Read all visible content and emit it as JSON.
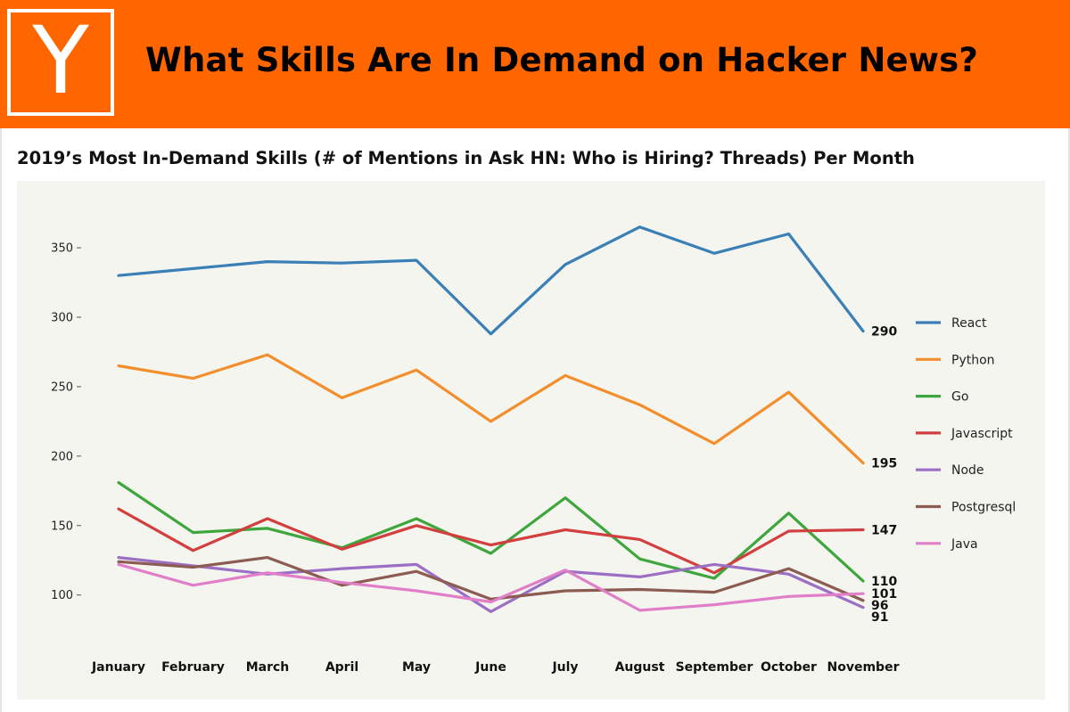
{
  "header": {
    "logo_letter": "Y",
    "title": "What Skills Are In Demand on Hacker News?",
    "bg_color": "#ff6600"
  },
  "chart_data": {
    "type": "line",
    "title": "2019’s Most In-Demand Skills (# of Mentions in Ask HN: Who is Hiring? Threads) Per Month",
    "xlabel": "",
    "ylabel": "",
    "categories": [
      "January",
      "February",
      "March",
      "April",
      "May",
      "June",
      "July",
      "August",
      "September",
      "October",
      "November"
    ],
    "yticks": [
      100,
      150,
      200,
      250,
      300,
      350
    ],
    "ylim": [
      78,
      385
    ],
    "legend_position": "right",
    "grid": false,
    "series": [
      {
        "name": "React",
        "color": "#3a7fb5",
        "values": [
          330,
          335,
          340,
          339,
          341,
          288,
          338,
          365,
          346,
          360,
          290
        ],
        "end_label": "290"
      },
      {
        "name": "Python",
        "color": "#f28e2b",
        "values": [
          265,
          256,
          273,
          242,
          262,
          225,
          258,
          237,
          209,
          246,
          195
        ],
        "end_label": "195"
      },
      {
        "name": "Go",
        "color": "#3ea63c",
        "values": [
          181,
          145,
          148,
          134,
          155,
          130,
          170,
          126,
          112,
          159,
          110
        ],
        "end_label": "110"
      },
      {
        "name": "Javascript",
        "color": "#d23f3f",
        "values": [
          162,
          132,
          155,
          133,
          150,
          136,
          147,
          140,
          116,
          146,
          147
        ],
        "end_label": "147"
      },
      {
        "name": "Node",
        "color": "#9b6fc4",
        "values": [
          127,
          121,
          115,
          119,
          122,
          88,
          117,
          113,
          122,
          115,
          91
        ],
        "end_label": "91"
      },
      {
        "name": "Postgresql",
        "color": "#8c5c52",
        "values": [
          124,
          120,
          127,
          107,
          117,
          97,
          103,
          104,
          102,
          119,
          96
        ],
        "end_label": "96"
      },
      {
        "name": "Java",
        "color": "#e07fc8",
        "values": [
          122,
          107,
          116,
          109,
          103,
          95,
          118,
          89,
          93,
          99,
          101
        ],
        "end_label": "101"
      }
    ]
  }
}
